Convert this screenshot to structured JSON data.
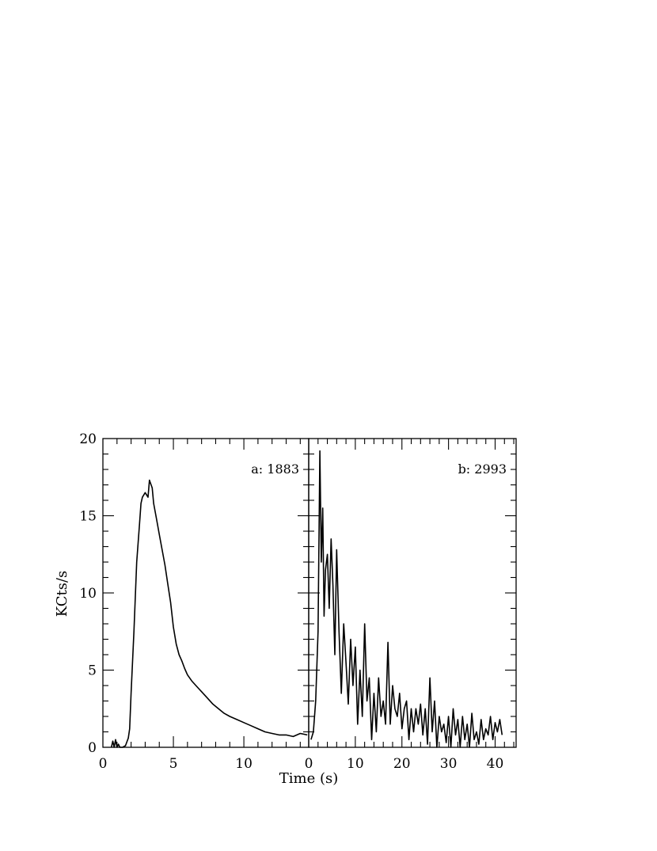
{
  "figure": {
    "ylabel": "KCts/s",
    "xlabel": "Time (s)"
  },
  "chart_data": [
    {
      "type": "line",
      "panel": "a",
      "annotation": "a: 1883",
      "xlim": [
        0,
        14.6
      ],
      "ylim": [
        0,
        20
      ],
      "xticks": [
        0,
        5,
        10
      ],
      "yticks": [
        0,
        5,
        10,
        15,
        20
      ],
      "ytick_labels": [
        "0",
        "5",
        "10",
        "15",
        "20"
      ],
      "series": [
        {
          "x": [
            0.6,
            0.7,
            0.8,
            0.9,
            1.0,
            1.1,
            1.2,
            1.4,
            1.6,
            1.8,
            1.9,
            2.0,
            2.2,
            2.4,
            2.6,
            2.7,
            2.8,
            3.0,
            3.2,
            3.3,
            3.5,
            3.6,
            3.8,
            4.0,
            4.2,
            4.4,
            4.6,
            4.8,
            5.0,
            5.2,
            5.4,
            5.6,
            5.8,
            6.0,
            6.3,
            6.6,
            7.0,
            7.4,
            7.8,
            8.2,
            8.6,
            9.0,
            9.5,
            10.0,
            10.5,
            11.0,
            11.5,
            12.0,
            12.5,
            13.0,
            13.5,
            14.0,
            14.5
          ],
          "y": [
            0.0,
            0.4,
            0.0,
            0.5,
            0.0,
            0.2,
            0.0,
            0.0,
            0.1,
            0.6,
            1.2,
            3.5,
            7.5,
            12.0,
            14.5,
            15.8,
            16.2,
            16.5,
            16.2,
            17.3,
            16.8,
            15.8,
            14.8,
            13.8,
            12.8,
            11.8,
            10.6,
            9.4,
            7.8,
            6.7,
            6.0,
            5.6,
            5.1,
            4.7,
            4.3,
            4.0,
            3.6,
            3.2,
            2.8,
            2.5,
            2.2,
            2.0,
            1.8,
            1.6,
            1.4,
            1.2,
            1.0,
            0.9,
            0.8,
            0.8,
            0.7,
            0.9,
            0.8
          ]
        }
      ]
    },
    {
      "type": "line",
      "panel": "b",
      "annotation": "b: 2993",
      "xlim": [
        0,
        44.5
      ],
      "ylim": [
        0,
        20
      ],
      "xticks": [
        0,
        10,
        20,
        30,
        40
      ],
      "yticks": [
        0,
        5,
        10,
        15,
        20
      ],
      "series": [
        {
          "x": [
            0.5,
            1.0,
            1.5,
            2.0,
            2.4,
            2.7,
            3.0,
            3.3,
            3.6,
            4.0,
            4.4,
            4.8,
            5.2,
            5.6,
            6.0,
            6.5,
            7.0,
            7.5,
            8.0,
            8.5,
            9.0,
            9.5,
            10.0,
            10.5,
            11.0,
            11.5,
            12.0,
            12.5,
            13.0,
            13.5,
            14.0,
            14.5,
            15.0,
            15.5,
            16.0,
            16.5,
            17.0,
            17.5,
            18.0,
            18.5,
            19.0,
            19.5,
            20.0,
            20.5,
            21.0,
            21.5,
            22.0,
            22.5,
            23.0,
            23.5,
            24.0,
            24.5,
            25.0,
            25.5,
            26.0,
            26.5,
            27.0,
            27.5,
            28.0,
            28.5,
            29.0,
            29.5,
            30.0,
            30.5,
            31.0,
            31.5,
            32.0,
            32.5,
            33.0,
            33.5,
            34.0,
            34.5,
            35.0,
            35.5,
            36.0,
            36.5,
            37.0,
            37.5,
            38.0,
            38.5,
            39.0,
            39.5,
            40.0,
            40.5,
            41.0,
            41.5
          ],
          "y": [
            0.5,
            1.0,
            3.0,
            7.5,
            19.2,
            12.0,
            15.5,
            8.5,
            11.5,
            12.5,
            9.0,
            13.5,
            10.5,
            6.0,
            12.8,
            7.5,
            3.5,
            8.0,
            5.5,
            2.8,
            7.0,
            4.0,
            6.5,
            1.5,
            5.0,
            2.0,
            8.0,
            3.0,
            4.5,
            0.5,
            3.5,
            1.0,
            4.5,
            2.0,
            3.0,
            1.5,
            6.8,
            1.5,
            4.0,
            2.5,
            2.0,
            3.5,
            1.2,
            2.5,
            3.0,
            0.5,
            2.5,
            1.0,
            2.5,
            1.5,
            2.8,
            0.8,
            2.5,
            0.2,
            4.5,
            1.0,
            3.0,
            0.0,
            2.0,
            1.0,
            1.5,
            0.3,
            2.0,
            0.0,
            2.5,
            0.8,
            1.8,
            0.0,
            2.0,
            0.5,
            1.5,
            0.0,
            2.2,
            0.5,
            1.0,
            0.2,
            1.8,
            0.5,
            1.2,
            0.8,
            2.0,
            0.5,
            1.6,
            1.0,
            1.8,
            0.8
          ]
        }
      ]
    }
  ]
}
